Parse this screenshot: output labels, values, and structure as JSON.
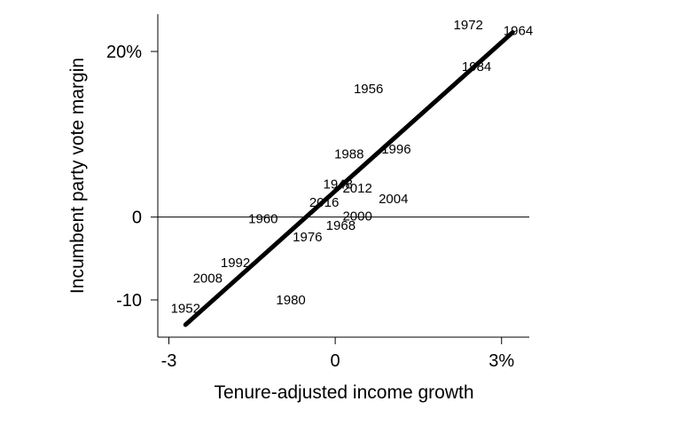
{
  "chart_data": {
    "type": "scatter",
    "title": "",
    "xlabel": "Tenure-adjusted income growth",
    "ylabel": "Incumbent party vote margin",
    "xlim": [
      -3.2,
      3.5
    ],
    "ylim": [
      -14.5,
      24.5
    ],
    "x_ticks": [
      {
        "value": -3,
        "label": "-3"
      },
      {
        "value": 0,
        "label": "0"
      },
      {
        "value": 3,
        "label": "3%"
      }
    ],
    "y_ticks": [
      {
        "value": -10,
        "label": "-10"
      },
      {
        "value": 0,
        "label": "0"
      },
      {
        "value": 20,
        "label": "20%"
      }
    ],
    "reference_line_y": 0,
    "grid": false,
    "points": [
      {
        "label": "1952",
        "x": -2.7,
        "y": -11.0
      },
      {
        "label": "2008",
        "x": -2.3,
        "y": -7.4
      },
      {
        "label": "1992",
        "x": -1.8,
        "y": -5.5
      },
      {
        "label": "1980",
        "x": -0.8,
        "y": -10.0
      },
      {
        "label": "1960",
        "x": -1.3,
        "y": -0.2
      },
      {
        "label": "1976",
        "x": -0.5,
        "y": -2.4
      },
      {
        "label": "1968",
        "x": 0.1,
        "y": -1.0
      },
      {
        "label": "2000",
        "x": 0.4,
        "y": 0.1
      },
      {
        "label": "2016",
        "x": -0.2,
        "y": 1.8
      },
      {
        "label": "1948",
        "x": 0.05,
        "y": 4.0
      },
      {
        "label": "2012",
        "x": 0.4,
        "y": 3.5
      },
      {
        "label": "2004",
        "x": 1.05,
        "y": 2.2
      },
      {
        "label": "1988",
        "x": 0.25,
        "y": 7.6
      },
      {
        "label": "1996",
        "x": 1.1,
        "y": 8.2
      },
      {
        "label": "1956",
        "x": 0.6,
        "y": 15.5
      },
      {
        "label": "1984",
        "x": 2.55,
        "y": 18.2
      },
      {
        "label": "1972",
        "x": 2.4,
        "y": 23.2
      },
      {
        "label": "1964",
        "x": 3.3,
        "y": 22.5
      }
    ],
    "fit_line": {
      "x": [
        -2.7,
        3.2
      ],
      "y": [
        -13.0,
        22.3
      ]
    }
  }
}
